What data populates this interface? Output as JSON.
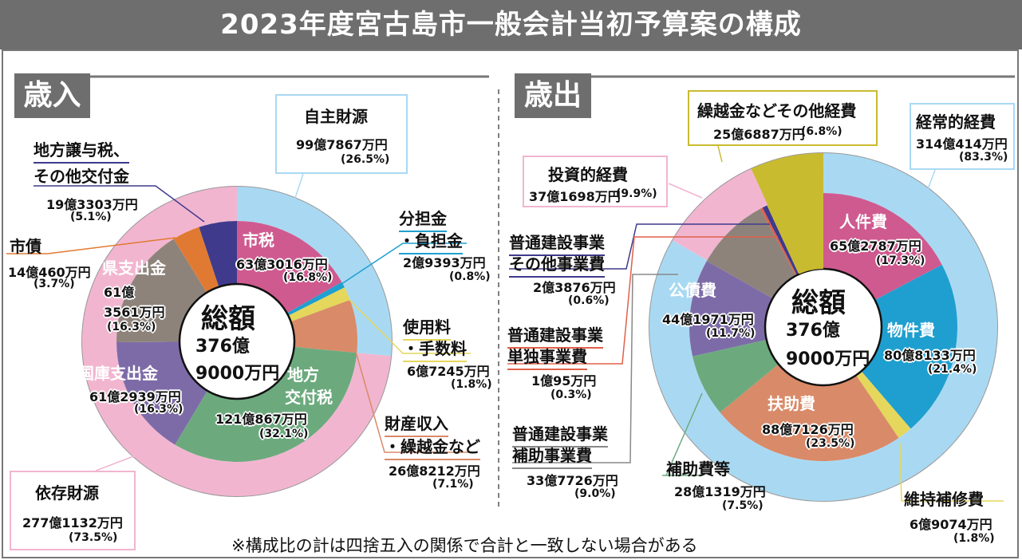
{
  "title": "2023年度宮古島市一般会計当初予算案の構成",
  "sections": {
    "revenue": "歳入",
    "expenditure": "歳出"
  },
  "total": {
    "label": "総額",
    "oku": "376億",
    "man": "9000万円"
  },
  "footnote": "※構成比の計は四捨五入の関係で合計と一致しない場合がある",
  "colors": {
    "light_blue": "#a9d9f2",
    "pink": "#f2b5d0",
    "magenta": "#cf5a8f",
    "blue": "#1f9fcf",
    "yellow": "#e4d75c",
    "salmon": "#d98a68",
    "green": "#6caa7e",
    "purple": "#7d6ba8",
    "graybrown": "#8e837a",
    "orange": "#e07a32",
    "navy": "#3f3a8c",
    "olive": "#c9bb30"
  },
  "chart_data": [
    {
      "type": "pie",
      "title": "歳入",
      "unit": "%",
      "outer": [
        {
          "label": "自主財源",
          "amount": "99億7867万円",
          "percent": 26.5,
          "pct_text": "(26.5%)",
          "color": "#a9d9f2"
        },
        {
          "label": "依存財源",
          "amount": "277億1132万円",
          "percent": 73.5,
          "pct_text": "(73.5%)",
          "color": "#f2b5d0"
        }
      ],
      "inner": [
        {
          "label": "市税",
          "amount": "63億3016万円",
          "percent": 16.8,
          "pct_text": "(16.8%)",
          "color": "#cf5a8f"
        },
        {
          "label": "分担金",
          "label2": "・負担金",
          "amount": "2億9393万円",
          "percent": 0.8,
          "pct_text": "(0.8%)",
          "color": "#1f9fcf"
        },
        {
          "label": "使用料",
          "label2": "・手数料",
          "amount": "6億7245万円",
          "percent": 1.8,
          "pct_text": "(1.8%)",
          "color": "#e4d75c"
        },
        {
          "label": "財産収入",
          "label2": "・繰越金など",
          "amount": "26億8212万円",
          "percent": 7.1,
          "pct_text": "(7.1%)",
          "color": "#d98a68"
        },
        {
          "label": "地方",
          "label2": "交付税",
          "amount": "121億867万円",
          "percent": 32.1,
          "pct_text": "(32.1%)",
          "color": "#6caa7e"
        },
        {
          "label": "国庫支出金",
          "amount": "61億2939万円",
          "percent": 16.3,
          "pct_text": "(16.3%)",
          "color": "#7d6ba8"
        },
        {
          "label": "県支出金",
          "amount_oku": "61億",
          "amount_man": "3561万円",
          "percent": 16.3,
          "pct_text": "(16.3%)",
          "color": "#8e837a"
        },
        {
          "label": "市債",
          "amount": "14億460万円",
          "percent": 3.7,
          "pct_text": "(3.7%)",
          "color": "#e07a32"
        },
        {
          "label": "地方譲与税、",
          "label2": "その他交付金",
          "amount": "19億3303万円",
          "percent": 5.1,
          "pct_text": "(5.1%)",
          "color": "#3f3a8c"
        }
      ]
    },
    {
      "type": "pie",
      "title": "歳出",
      "unit": "%",
      "outer": [
        {
          "label": "経常的経費",
          "amount": "314億414万円",
          "percent": 83.3,
          "pct_text": "(83.3%)",
          "color": "#a9d9f2"
        },
        {
          "label": "投資的経費",
          "amount": "37億1698万円",
          "percent": 9.9,
          "pct_text": "(9.9%)",
          "color": "#f2b5d0"
        },
        {
          "label": "繰越金などその他経費",
          "amount": "25億6887万円",
          "percent": 6.8,
          "pct_text": "(6.8%)",
          "color": "#c9bb30"
        }
      ],
      "inner": [
        {
          "label": "人件費",
          "amount": "65億2787万円",
          "percent": 17.3,
          "pct_text": "(17.3%)",
          "color": "#cf5a8f"
        },
        {
          "label": "物件費",
          "amount": "80億8133万円",
          "percent": 21.4,
          "pct_text": "(21.4%)",
          "color": "#1f9fcf"
        },
        {
          "label": "維持補修費",
          "amount": "6億9074万円",
          "percent": 1.8,
          "pct_text": "(1.8%)",
          "color": "#e4d75c"
        },
        {
          "label": "扶助費",
          "amount": "88億7126万円",
          "percent": 23.5,
          "pct_text": "(23.5%)",
          "color": "#d98a68"
        },
        {
          "label": "補助費等",
          "amount": "28億1319万円",
          "percent": 7.5,
          "pct_text": "(7.5%)",
          "color": "#6caa7e"
        },
        {
          "label": "公債費",
          "amount": "44億1971万円",
          "percent": 11.7,
          "pct_text": "(11.7%)",
          "color": "#7d6ba8"
        },
        {
          "label": "普通建設事業",
          "label2": "補助事業費",
          "amount": "33億7726万円",
          "percent": 9.0,
          "pct_text": "(9.0%)",
          "color": "#8e837a"
        },
        {
          "label": "普通建設事業",
          "label2": "単独事業費",
          "amount": "1億95万円",
          "percent": 0.3,
          "pct_text": "(0.3%)",
          "color": "#e0604a"
        },
        {
          "label": "普通建設事業",
          "label2": "その他事業費",
          "amount": "2億3876万円",
          "percent": 0.6,
          "pct_text": "(0.6%)",
          "color": "#3f3a8c"
        },
        {
          "label": "繰越金などその他経費",
          "amount": "25億6887万円",
          "percent": 6.8,
          "pct_text": "(6.8%)",
          "color": "#c9bb30"
        }
      ]
    }
  ]
}
